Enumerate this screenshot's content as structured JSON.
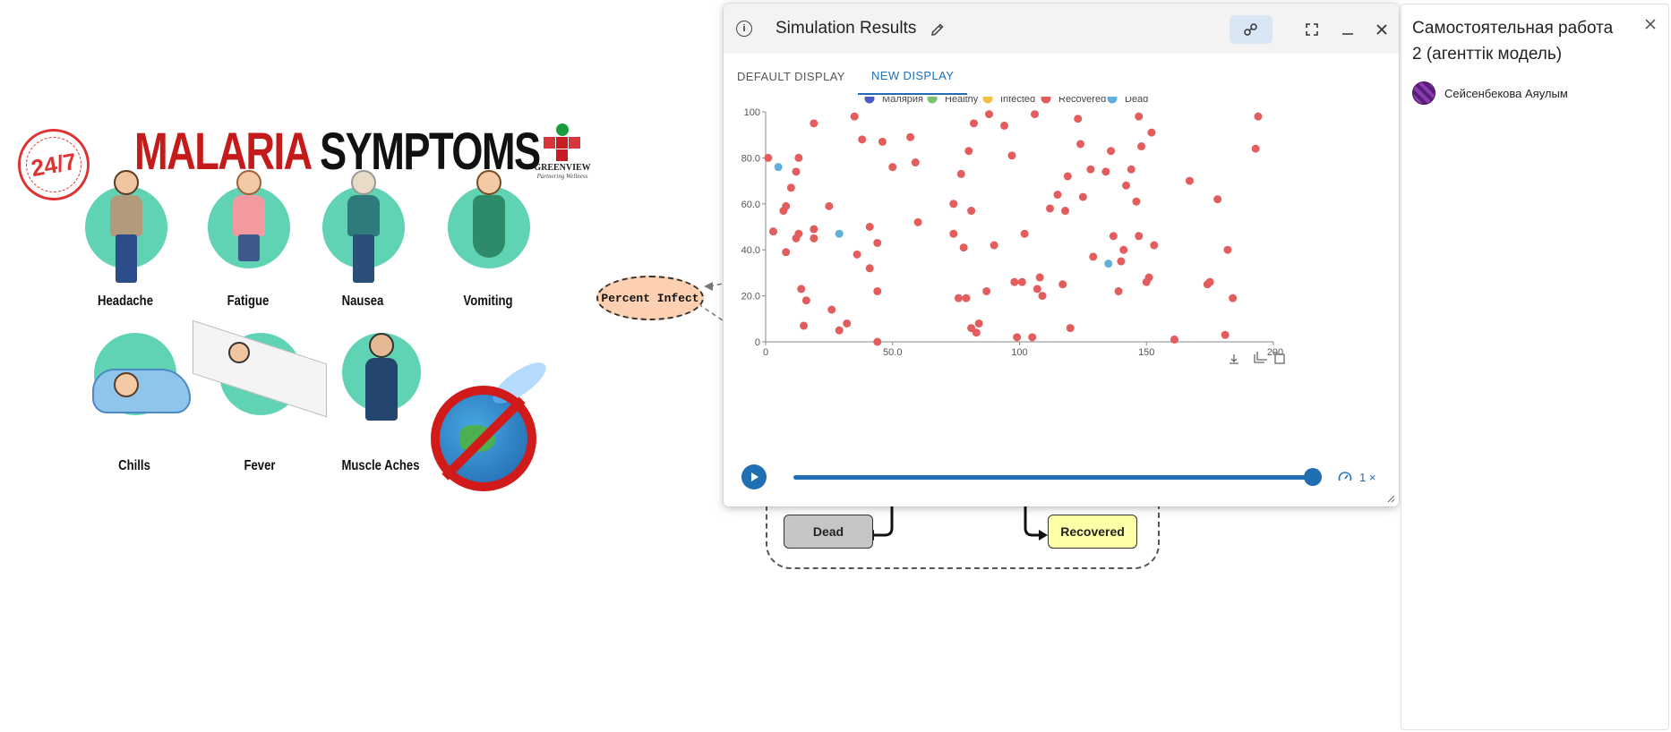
{
  "poster": {
    "badge": "24/7",
    "title_red": "MALARIA",
    "title_black": "SYMPTOMS",
    "brand_name": "GREENVIEW",
    "brand_tag": "Partnering Wellness",
    "symptoms": [
      "Headache",
      "Fatigue",
      "Nausea",
      "Vomiting",
      "Chills",
      "Fever",
      "Muscle Aches"
    ]
  },
  "diagram": {
    "percent_infect": "Percent Infect",
    "dead": "Dead",
    "recovered": "Recovered"
  },
  "sim_window": {
    "title": "Simulation Results",
    "tabs": [
      "DEFAULT DISPLAY",
      "NEW DISPLAY"
    ],
    "active_tab": 1,
    "speed": "1 ×",
    "progress": 1.0
  },
  "panel": {
    "title": "Самостоятельная работа 2 (агенттік модель)",
    "author": "Сейсенбекова Аяулым"
  },
  "colors": {
    "accent": "#1f6fb2",
    "malaria": "#4a5bc4",
    "healthy": "#7cc46b",
    "infected": "#f3c043",
    "recovered": "#e35d5d",
    "dead": "#5fb0dc"
  },
  "chart_data": {
    "type": "scatter",
    "x_ticks": [
      "0",
      "50.0",
      "100",
      "150",
      "200"
    ],
    "y_ticks": [
      "0",
      "20.0",
      "40.0",
      "60.0",
      "80.0",
      "100"
    ],
    "xlim": [
      0,
      200
    ],
    "ylim": [
      0,
      100
    ],
    "legend": [
      "Малярия",
      "Healthy",
      "Infected",
      "Recovered",
      "Dead"
    ],
    "series": [
      {
        "name": "Малярия",
        "points": []
      },
      {
        "name": "Healthy",
        "points": []
      },
      {
        "name": "Infected",
        "points": []
      },
      {
        "name": "Recovered",
        "points": [
          [
            1,
            80
          ],
          [
            3,
            48
          ],
          [
            7,
            57
          ],
          [
            8,
            59
          ],
          [
            8,
            39
          ],
          [
            10,
            67
          ],
          [
            12,
            45
          ],
          [
            12,
            74
          ],
          [
            13,
            80
          ],
          [
            13,
            47
          ],
          [
            14,
            23
          ],
          [
            16,
            18
          ],
          [
            15,
            7
          ],
          [
            19,
            95
          ],
          [
            19,
            49
          ],
          [
            19,
            45
          ],
          [
            25,
            59
          ],
          [
            26,
            14
          ],
          [
            29,
            5
          ],
          [
            32,
            8
          ],
          [
            35,
            98
          ],
          [
            36,
            38
          ],
          [
            38,
            88
          ],
          [
            41,
            50
          ],
          [
            41,
            32
          ],
          [
            44,
            43
          ],
          [
            44,
            22
          ],
          [
            44,
            0
          ],
          [
            46,
            87
          ],
          [
            50,
            76
          ],
          [
            57,
            89
          ],
          [
            59,
            78
          ],
          [
            60,
            52
          ],
          [
            74,
            60
          ],
          [
            74,
            47
          ],
          [
            76,
            19
          ],
          [
            77,
            73
          ],
          [
            78,
            41
          ],
          [
            79,
            19
          ],
          [
            80,
            83
          ],
          [
            81,
            57
          ],
          [
            81,
            6
          ],
          [
            82,
            95
          ],
          [
            83,
            4
          ],
          [
            84,
            8
          ],
          [
            87,
            22
          ],
          [
            88,
            99
          ],
          [
            90,
            42
          ],
          [
            94,
            94
          ],
          [
            97,
            81
          ],
          [
            98,
            26
          ],
          [
            99,
            2
          ],
          [
            101,
            26
          ],
          [
            102,
            47
          ],
          [
            105,
            2
          ],
          [
            106,
            99
          ],
          [
            107,
            23
          ],
          [
            108,
            28
          ],
          [
            109,
            20
          ],
          [
            112,
            58
          ],
          [
            115,
            64
          ],
          [
            117,
            25
          ],
          [
            118,
            57
          ],
          [
            119,
            72
          ],
          [
            120,
            6
          ],
          [
            123,
            97
          ],
          [
            124,
            86
          ],
          [
            125,
            63
          ],
          [
            128,
            75
          ],
          [
            129,
            37
          ],
          [
            134,
            74
          ],
          [
            136,
            83
          ],
          [
            137,
            46
          ],
          [
            139,
            22
          ],
          [
            140,
            35
          ],
          [
            141,
            40
          ],
          [
            142,
            68
          ],
          [
            144,
            75
          ],
          [
            146,
            61
          ],
          [
            147,
            98
          ],
          [
            147,
            46
          ],
          [
            148,
            85
          ],
          [
            150,
            26
          ],
          [
            151,
            28
          ],
          [
            152,
            91
          ],
          [
            153,
            42
          ],
          [
            161,
            1
          ],
          [
            167,
            70
          ],
          [
            174,
            25
          ],
          [
            175,
            26
          ],
          [
            178,
            62
          ],
          [
            181,
            3
          ],
          [
            182,
            40
          ],
          [
            184,
            19
          ],
          [
            193,
            84
          ],
          [
            194,
            98
          ]
        ]
      },
      {
        "name": "Dead",
        "points": [
          [
            5,
            76
          ],
          [
            29,
            47
          ],
          [
            135,
            34
          ]
        ]
      }
    ]
  }
}
